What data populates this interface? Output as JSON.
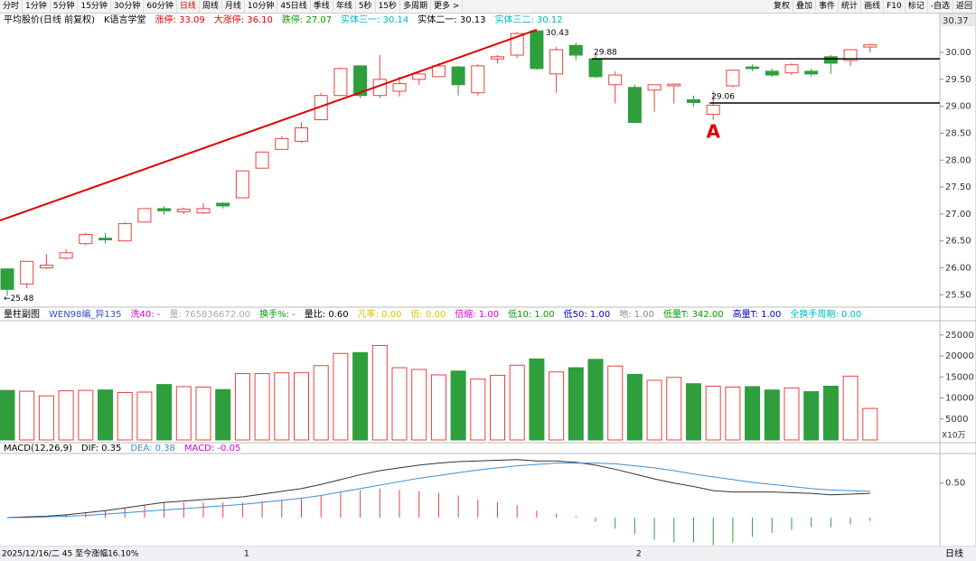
{
  "toolbar": {
    "left": [
      "分时",
      "1分钟",
      "5分钟",
      "15分钟",
      "30分钟",
      "60分钟",
      "日线",
      "周线",
      "月线",
      "10分钟",
      "45日线",
      "季线",
      "年线",
      "5秒",
      "15秒",
      "多周期",
      "更多 >"
    ],
    "right": [
      "复权",
      "叠加",
      "事件",
      "统计",
      "画线",
      "F10",
      "标记",
      "-自选",
      "返回"
    ]
  },
  "status_bar": {
    "text": "2025/12/16/二 45 至今涨幅16.10%",
    "marks": [
      "1",
      "2"
    ],
    "period": "日线"
  },
  "chart_data": [
    {
      "type": "candlestick",
      "header": [
        {
          "text": "平均股价(日线 前复权)",
          "color": "#000000"
        },
        {
          "text": "K语言学堂",
          "color": "#000000"
        },
        {
          "text": "涨停: 33.09",
          "color": "#e00000"
        },
        {
          "text": "大涨停: 36.10",
          "color": "#e00000"
        },
        {
          "text": "跌停: 27.07",
          "color": "#009900"
        },
        {
          "text": "实体三一: 30.14",
          "color": "#00b5c0"
        },
        {
          "text": "实体二一: 30.13",
          "color": "#000000"
        },
        {
          "text": "实体三二: 30.12",
          "color": "#00b5c0"
        }
      ],
      "top_label": "30.37",
      "open": [
        25.98,
        25.7,
        26.0,
        26.18,
        26.45,
        26.55,
        26.5,
        26.85,
        27.1,
        27.04,
        27.02,
        27.2,
        27.3,
        27.85,
        28.2,
        28.35,
        28.75,
        29.2,
        29.75,
        29.2,
        29.28,
        29.5,
        29.55,
        29.73,
        29.25,
        29.88,
        29.95,
        30.4,
        29.6,
        30.13,
        29.88,
        29.4,
        29.35,
        29.3,
        29.38,
        29.12,
        28.85,
        29.38,
        29.73,
        29.65,
        29.62,
        29.65,
        29.92,
        29.85,
        30.1
      ],
      "high": [
        25.98,
        26.12,
        26.25,
        26.35,
        26.65,
        26.65,
        26.85,
        27.1,
        27.15,
        27.12,
        27.2,
        27.22,
        27.8,
        28.15,
        28.45,
        28.7,
        29.25,
        29.72,
        29.75,
        29.95,
        29.55,
        29.65,
        29.8,
        29.75,
        29.78,
        29.95,
        30.38,
        30.43,
        30.1,
        30.18,
        29.98,
        29.65,
        29.4,
        29.4,
        29.42,
        29.2,
        29.28,
        29.68,
        29.78,
        29.7,
        29.8,
        29.7,
        29.95,
        30.06,
        30.16
      ],
      "low": [
        25.48,
        25.62,
        25.98,
        26.15,
        26.42,
        26.45,
        26.5,
        26.85,
        26.98,
        27.0,
        27.0,
        27.1,
        27.3,
        27.85,
        28.2,
        28.32,
        28.75,
        29.2,
        29.15,
        29.15,
        29.18,
        29.4,
        29.55,
        29.2,
        29.2,
        29.8,
        29.9,
        29.68,
        29.25,
        29.85,
        29.52,
        29.05,
        28.7,
        28.9,
        29.05,
        29.0,
        28.75,
        29.35,
        29.65,
        29.55,
        29.58,
        29.55,
        29.6,
        29.75,
        30.0
      ],
      "close": [
        25.6,
        26.12,
        26.05,
        26.28,
        26.62,
        26.52,
        26.82,
        27.1,
        27.06,
        27.09,
        27.1,
        27.15,
        27.8,
        28.15,
        28.4,
        28.6,
        29.2,
        29.7,
        29.2,
        29.5,
        29.42,
        29.6,
        29.75,
        29.4,
        29.75,
        29.92,
        30.35,
        29.7,
        30.05,
        29.95,
        29.55,
        29.58,
        28.7,
        29.4,
        29.41,
        29.07,
        29.02,
        29.67,
        29.7,
        29.58,
        29.77,
        29.6,
        29.8,
        30.05,
        30.14
      ],
      "up_color": "#e8413f",
      "down_color": "#2f9e3d",
      "trend_line": [
        26.88,
        30.42
      ],
      "levels": [
        29.88,
        29.06
      ],
      "annotations": [
        "←25.48",
        "A"
      ],
      "ylim": [
        25.27,
        30.47
      ],
      "yticks": [
        {
          "value": 25.5,
          "label": "25.50"
        },
        {
          "value": 26,
          "label": "26.00"
        },
        {
          "value": 26.5,
          "label": "26.50"
        },
        {
          "value": 27,
          "label": "27.00"
        },
        {
          "value": 27.5,
          "label": "27.50"
        },
        {
          "value": 28,
          "label": "28.00"
        },
        {
          "value": 28.5,
          "label": "28.50"
        },
        {
          "value": 29,
          "label": "29.00"
        },
        {
          "value": 29.5,
          "label": "29.50"
        },
        {
          "value": 30,
          "label": "30.00"
        }
      ]
    },
    {
      "type": "bar",
      "header": [
        {
          "text": "量柱副图",
          "color": "#000000"
        },
        {
          "text": "WEN98编_异135",
          "color": "#3050d0"
        },
        {
          "text": "洗40: -",
          "color": "#d000d0"
        },
        {
          "text": "量: 765836672.00",
          "color": "#aaaaaa"
        },
        {
          "text": "换手%: -",
          "color": "#009900"
        },
        {
          "text": "量比: 0.60",
          "color": "#000000"
        },
        {
          "text": "凡率: 0.00",
          "color": "#e0c000"
        },
        {
          "text": "倍: 0.00",
          "color": "#e0c000"
        },
        {
          "text": "倍缩: 1.00",
          "color": "#d000d0"
        },
        {
          "text": "低10: 1.00",
          "color": "#009900"
        },
        {
          "text": "低50: 1.00",
          "color": "#0000cc"
        },
        {
          "text": "地: 1.00",
          "color": "#888888"
        },
        {
          "text": "低量T: 342.00",
          "color": "#009900"
        },
        {
          "text": "高量T: 1.00",
          "color": "#0000cc"
        },
        {
          "text": "全换手周期: 0.00",
          "color": "#00b5c0"
        }
      ],
      "unit": "X10万",
      "values": [
        11800,
        11600,
        10500,
        11700,
        11800,
        11900,
        11300,
        11400,
        13200,
        12700,
        12600,
        12000,
        15800,
        15800,
        16000,
        16000,
        17700,
        20600,
        20800,
        22500,
        17200,
        16800,
        15500,
        16400,
        14500,
        15400,
        17800,
        19300,
        16200,
        17200,
        19200,
        17600,
        15600,
        14200,
        14900,
        13400,
        12800,
        12600,
        12700,
        11900,
        12400,
        11500,
        12800,
        15200,
        7500
      ],
      "ylim": [
        0,
        28400
      ],
      "yticks": [
        5000,
        10000,
        15000,
        20000,
        25000
      ]
    },
    {
      "type": "macd",
      "header": [
        {
          "text": "MACD(12,26,9)",
          "color": "#000000"
        },
        {
          "text": "DIF: 0.35",
          "color": "#000000"
        },
        {
          "text": "DEA: 0.38",
          "color": "#3a8fd9"
        },
        {
          "text": "MACD: -0.05",
          "color": "#d000d0"
        }
      ],
      "series": [
        {
          "color": "#333333",
          "values": [
            0.0,
            0.01,
            0.02,
            0.04,
            0.07,
            0.1,
            0.14,
            0.18,
            0.22,
            0.24,
            0.26,
            0.28,
            0.3,
            0.34,
            0.38,
            0.42,
            0.48,
            0.55,
            0.62,
            0.68,
            0.72,
            0.76,
            0.79,
            0.81,
            0.82,
            0.83,
            0.84,
            0.82,
            0.82,
            0.8,
            0.76,
            0.7,
            0.63,
            0.56,
            0.5,
            0.45,
            0.39,
            0.37,
            0.37,
            0.37,
            0.36,
            0.35,
            0.33,
            0.34,
            0.35
          ]
        },
        {
          "color": "#3a8fd9",
          "values": [
            0,
            0,
            0.01,
            0.02,
            0.03,
            0.05,
            0.07,
            0.09,
            0.11,
            0.13,
            0.15,
            0.17,
            0.19,
            0.22,
            0.25,
            0.28,
            0.32,
            0.37,
            0.42,
            0.47,
            0.52,
            0.57,
            0.61,
            0.65,
            0.69,
            0.72,
            0.75,
            0.77,
            0.79,
            0.79,
            0.79,
            0.78,
            0.75,
            0.72,
            0.68,
            0.63,
            0.59,
            0.55,
            0.51,
            0.48,
            0.45,
            0.42,
            0.4,
            0.39,
            0.38
          ]
        }
      ],
      "histogram": [
        0,
        0.02,
        0.02,
        0.04,
        0.08,
        0.1,
        0.14,
        0.18,
        0.22,
        0.22,
        0.22,
        0.22,
        0.22,
        0.24,
        0.26,
        0.28,
        0.32,
        0.36,
        0.4,
        0.42,
        0.4,
        0.38,
        0.36,
        0.32,
        0.26,
        0.22,
        0.18,
        0.1,
        0.06,
        0.02,
        -0.06,
        -0.16,
        -0.24,
        -0.32,
        -0.36,
        -0.36,
        -0.4,
        -0.36,
        -0.28,
        -0.22,
        -0.18,
        -0.14,
        -0.14,
        -0.1,
        -0.05
      ],
      "up_color": "#e8413f",
      "down_color": "#2f9e3d",
      "ylim": [
        -0.42,
        1.02
      ],
      "yticks": [
        {
          "value": 0.5,
          "label": "0.50"
        }
      ]
    }
  ]
}
